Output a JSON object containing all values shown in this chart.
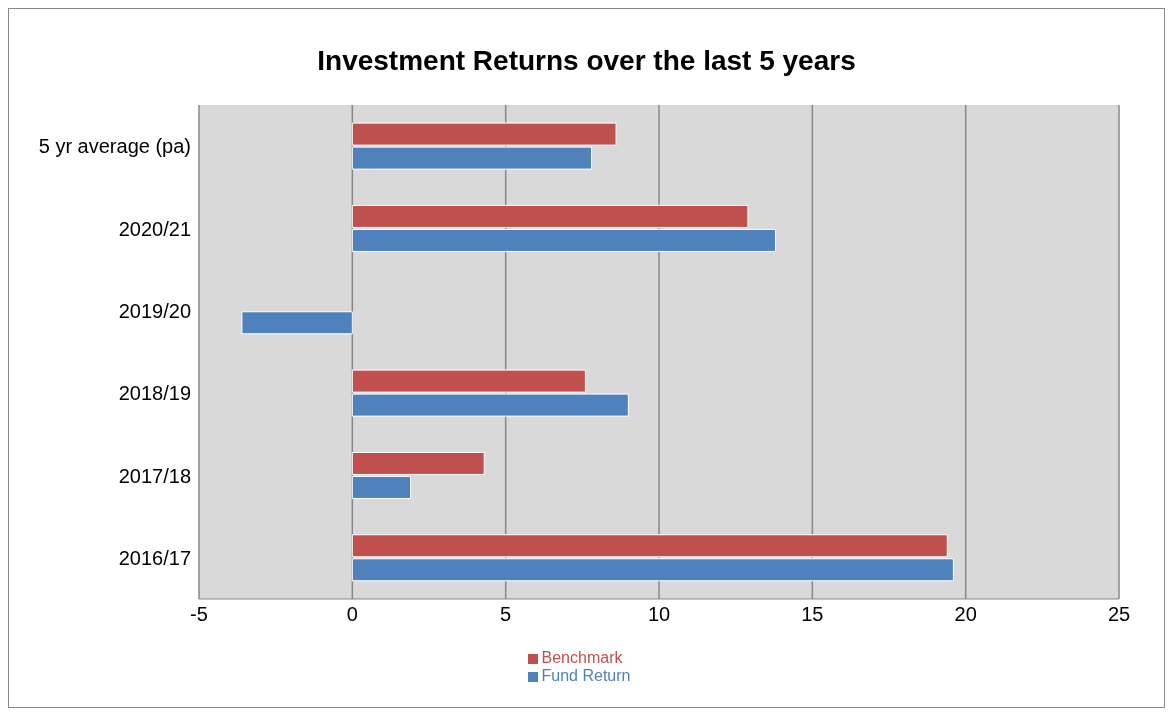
{
  "chart_data": {
    "type": "bar",
    "orientation": "horizontal",
    "title": "Investment Returns over the last 5 years",
    "categories": [
      "5 yr average (pa)",
      "2020/21",
      "2019/20",
      "2018/19",
      "2017/18",
      "2016/17"
    ],
    "series": [
      {
        "name": "Benchmark",
        "color": "#c0504d",
        "values": [
          8.6,
          12.9,
          null,
          7.6,
          4.3,
          19.4
        ]
      },
      {
        "name": "Fund Return",
        "color": "#4f81bd",
        "values": [
          7.8,
          13.8,
          -3.6,
          9.0,
          1.9,
          19.6
        ]
      }
    ],
    "xlim": [
      -5,
      25
    ],
    "xticks": [
      -5,
      0,
      5,
      10,
      15,
      20,
      25
    ],
    "grid": "x",
    "legend": "bottom"
  }
}
